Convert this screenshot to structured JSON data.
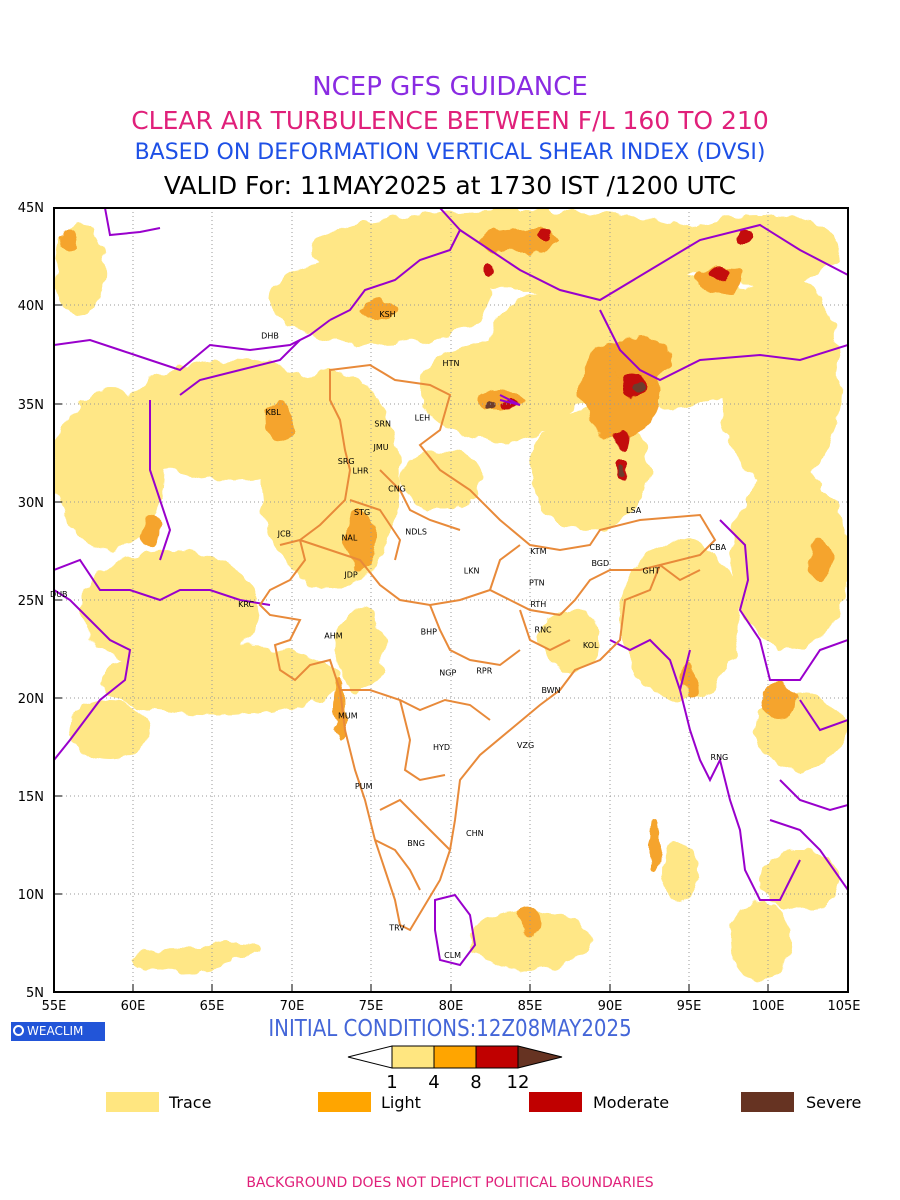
{
  "titles": {
    "line1": "NCEP GFS GUIDANCE",
    "line2": "CLEAR AIR TURBULENCE BETWEEN F/L 160 TO 210",
    "line3": "BASED ON DEFORMATION VERTICAL SHEAR INDEX (DVSI)",
    "line4": "VALID For: 11MAY2025 at 1730 IST /1200 UTC"
  },
  "axes": {
    "lat_labels": [
      "45N",
      "40N",
      "35N",
      "30N",
      "25N",
      "20N",
      "15N",
      "10N",
      "5N"
    ],
    "lon_labels": [
      "55E",
      "60E",
      "65E",
      "70E",
      "75E",
      "80E",
      "85E",
      "90E",
      "95E",
      "100E",
      "105E"
    ],
    "lat_range": [
      5,
      45
    ],
    "lon_range": [
      55,
      105
    ],
    "grid": "dotted"
  },
  "cities": [
    {
      "code": "KSH",
      "lon": 76.0,
      "lat": 39.6
    },
    {
      "code": "DHB",
      "lon": 68.6,
      "lat": 38.5
    },
    {
      "code": "HTN",
      "lon": 80.0,
      "lat": 37.1
    },
    {
      "code": "KBL",
      "lon": 68.8,
      "lat": 34.6
    },
    {
      "code": "SRN",
      "lon": 75.7,
      "lat": 34.0
    },
    {
      "code": "LEH",
      "lon": 78.2,
      "lat": 34.3
    },
    {
      "code": "JMU",
      "lon": 75.6,
      "lat": 32.8
    },
    {
      "code": "SRG",
      "lon": 73.4,
      "lat": 32.1
    },
    {
      "code": "LHR",
      "lon": 74.3,
      "lat": 31.6
    },
    {
      "code": "CNG",
      "lon": 76.6,
      "lat": 30.7
    },
    {
      "code": "STG",
      "lon": 74.4,
      "lat": 29.5
    },
    {
      "code": "JCB",
      "lon": 69.5,
      "lat": 28.4
    },
    {
      "code": "NAL",
      "lon": 73.6,
      "lat": 28.2
    },
    {
      "code": "NDLS",
      "lon": 77.8,
      "lat": 28.5
    },
    {
      "code": "LSA",
      "lon": 91.5,
      "lat": 29.6
    },
    {
      "code": "KTM",
      "lon": 85.5,
      "lat": 27.5
    },
    {
      "code": "CBA",
      "lon": 96.8,
      "lat": 27.7
    },
    {
      "code": "LKN",
      "lon": 81.3,
      "lat": 26.5
    },
    {
      "code": "BGD",
      "lon": 89.4,
      "lat": 26.9
    },
    {
      "code": "GHT",
      "lon": 92.6,
      "lat": 26.5
    },
    {
      "code": "JDP",
      "lon": 73.7,
      "lat": 26.3
    },
    {
      "code": "DUB",
      "lon": 55.3,
      "lat": 25.3
    },
    {
      "code": "PTN",
      "lon": 85.4,
      "lat": 25.9
    },
    {
      "code": "KRC",
      "lon": 67.1,
      "lat": 24.8
    },
    {
      "code": "RTH",
      "lon": 85.5,
      "lat": 24.8
    },
    {
      "code": "BHP",
      "lon": 78.6,
      "lat": 23.4
    },
    {
      "code": "AHM",
      "lon": 72.6,
      "lat": 23.2
    },
    {
      "code": "RNC",
      "lon": 85.8,
      "lat": 23.5
    },
    {
      "code": "KOL",
      "lon": 88.8,
      "lat": 22.7
    },
    {
      "code": "NGP",
      "lon": 79.8,
      "lat": 21.3
    },
    {
      "code": "RPR",
      "lon": 82.1,
      "lat": 21.4
    },
    {
      "code": "BWN",
      "lon": 86.3,
      "lat": 20.4
    },
    {
      "code": "MUM",
      "lon": 73.5,
      "lat": 19.1
    },
    {
      "code": "HYD",
      "lon": 79.4,
      "lat": 17.5
    },
    {
      "code": "VZG",
      "lon": 84.7,
      "lat": 17.6
    },
    {
      "code": "RNG",
      "lon": 96.9,
      "lat": 17.0
    },
    {
      "code": "PUM",
      "lon": 74.5,
      "lat": 15.5
    },
    {
      "code": "CHN",
      "lon": 81.5,
      "lat": 13.1
    },
    {
      "code": "BNG",
      "lon": 77.8,
      "lat": 12.6
    },
    {
      "code": "TRV",
      "lon": 76.6,
      "lat": 8.3
    },
    {
      "code": "CLM",
      "lon": 80.1,
      "lat": 6.9
    }
  ],
  "colorbar": {
    "ticks": [
      "1",
      "4",
      "8",
      "12"
    ],
    "colors": [
      "#ffe680",
      "#ffa500",
      "#c00000",
      "#663322"
    ]
  },
  "legend": [
    {
      "label": "Trace",
      "color": "#ffe680"
    },
    {
      "label": "Light",
      "color": "#ffa500"
    },
    {
      "label": "Moderate",
      "color": "#c00000"
    },
    {
      "label": "Severe",
      "color": "#663322"
    }
  ],
  "initial_conditions": "INITIAL CONDITIONS:12Z08MAY2025",
  "logo_text": "WEACLIM",
  "footer": "BACKGROUND DOES NOT DEPICT POLITICAL BOUNDARIES"
}
